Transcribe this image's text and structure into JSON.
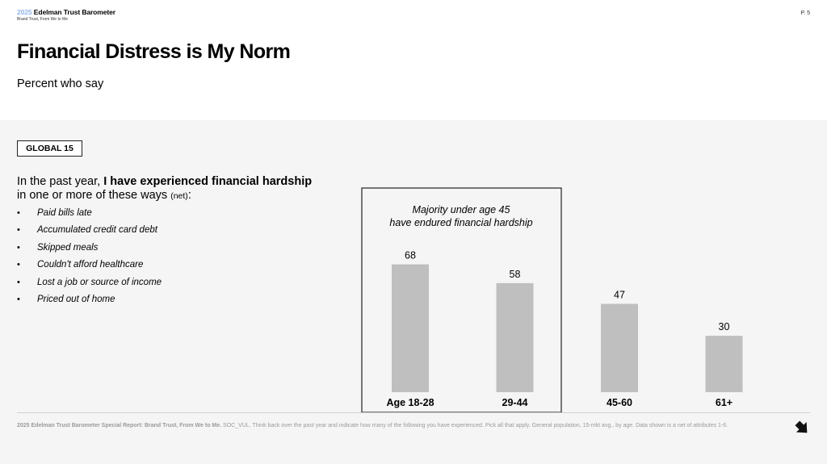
{
  "header": {
    "brand_year": "2025",
    "brand_name": "Edelman Trust Barometer",
    "brand_subtitle": "Brand Trust, From We to Me",
    "page_number": "P. 5"
  },
  "title": "Financial Distress is My Norm",
  "subtitle": "Percent who say",
  "badge": "GLOBAL 15",
  "question": {
    "prefix": "In the past year, ",
    "bold": "I have experienced financial hardship",
    "line2": "in one or more of these ways ",
    "net": "(net)",
    "colon": ":"
  },
  "bullets": [
    "Paid bills late",
    "Accumulated credit card debt",
    "Skipped meals",
    "Couldn't afford healthcare",
    "Lost a job or source of income",
    "Priced out of home"
  ],
  "callout": {
    "line1": "Majority under age 45",
    "line2": "have endured financial hardship"
  },
  "chart_data": {
    "type": "bar",
    "categories": [
      "Age 18-28",
      "29-44",
      "45-60",
      "61+"
    ],
    "values": [
      68,
      58,
      47,
      30
    ],
    "ylim": [
      0,
      100
    ],
    "title": "",
    "xlabel": "",
    "ylabel": "",
    "grid": false,
    "bar_color": "#bfbfbf"
  },
  "footer": {
    "bold": "2025 Edelman Trust Barometer Special Report: Brand Trust, From We to Me.",
    "text": " SOC_VUL. Think back over the past year and indicate how many of the following you have experienced. Pick all that apply. General population, 15-mkt avg., by age. Data shown is a net of attributes 1-6."
  }
}
